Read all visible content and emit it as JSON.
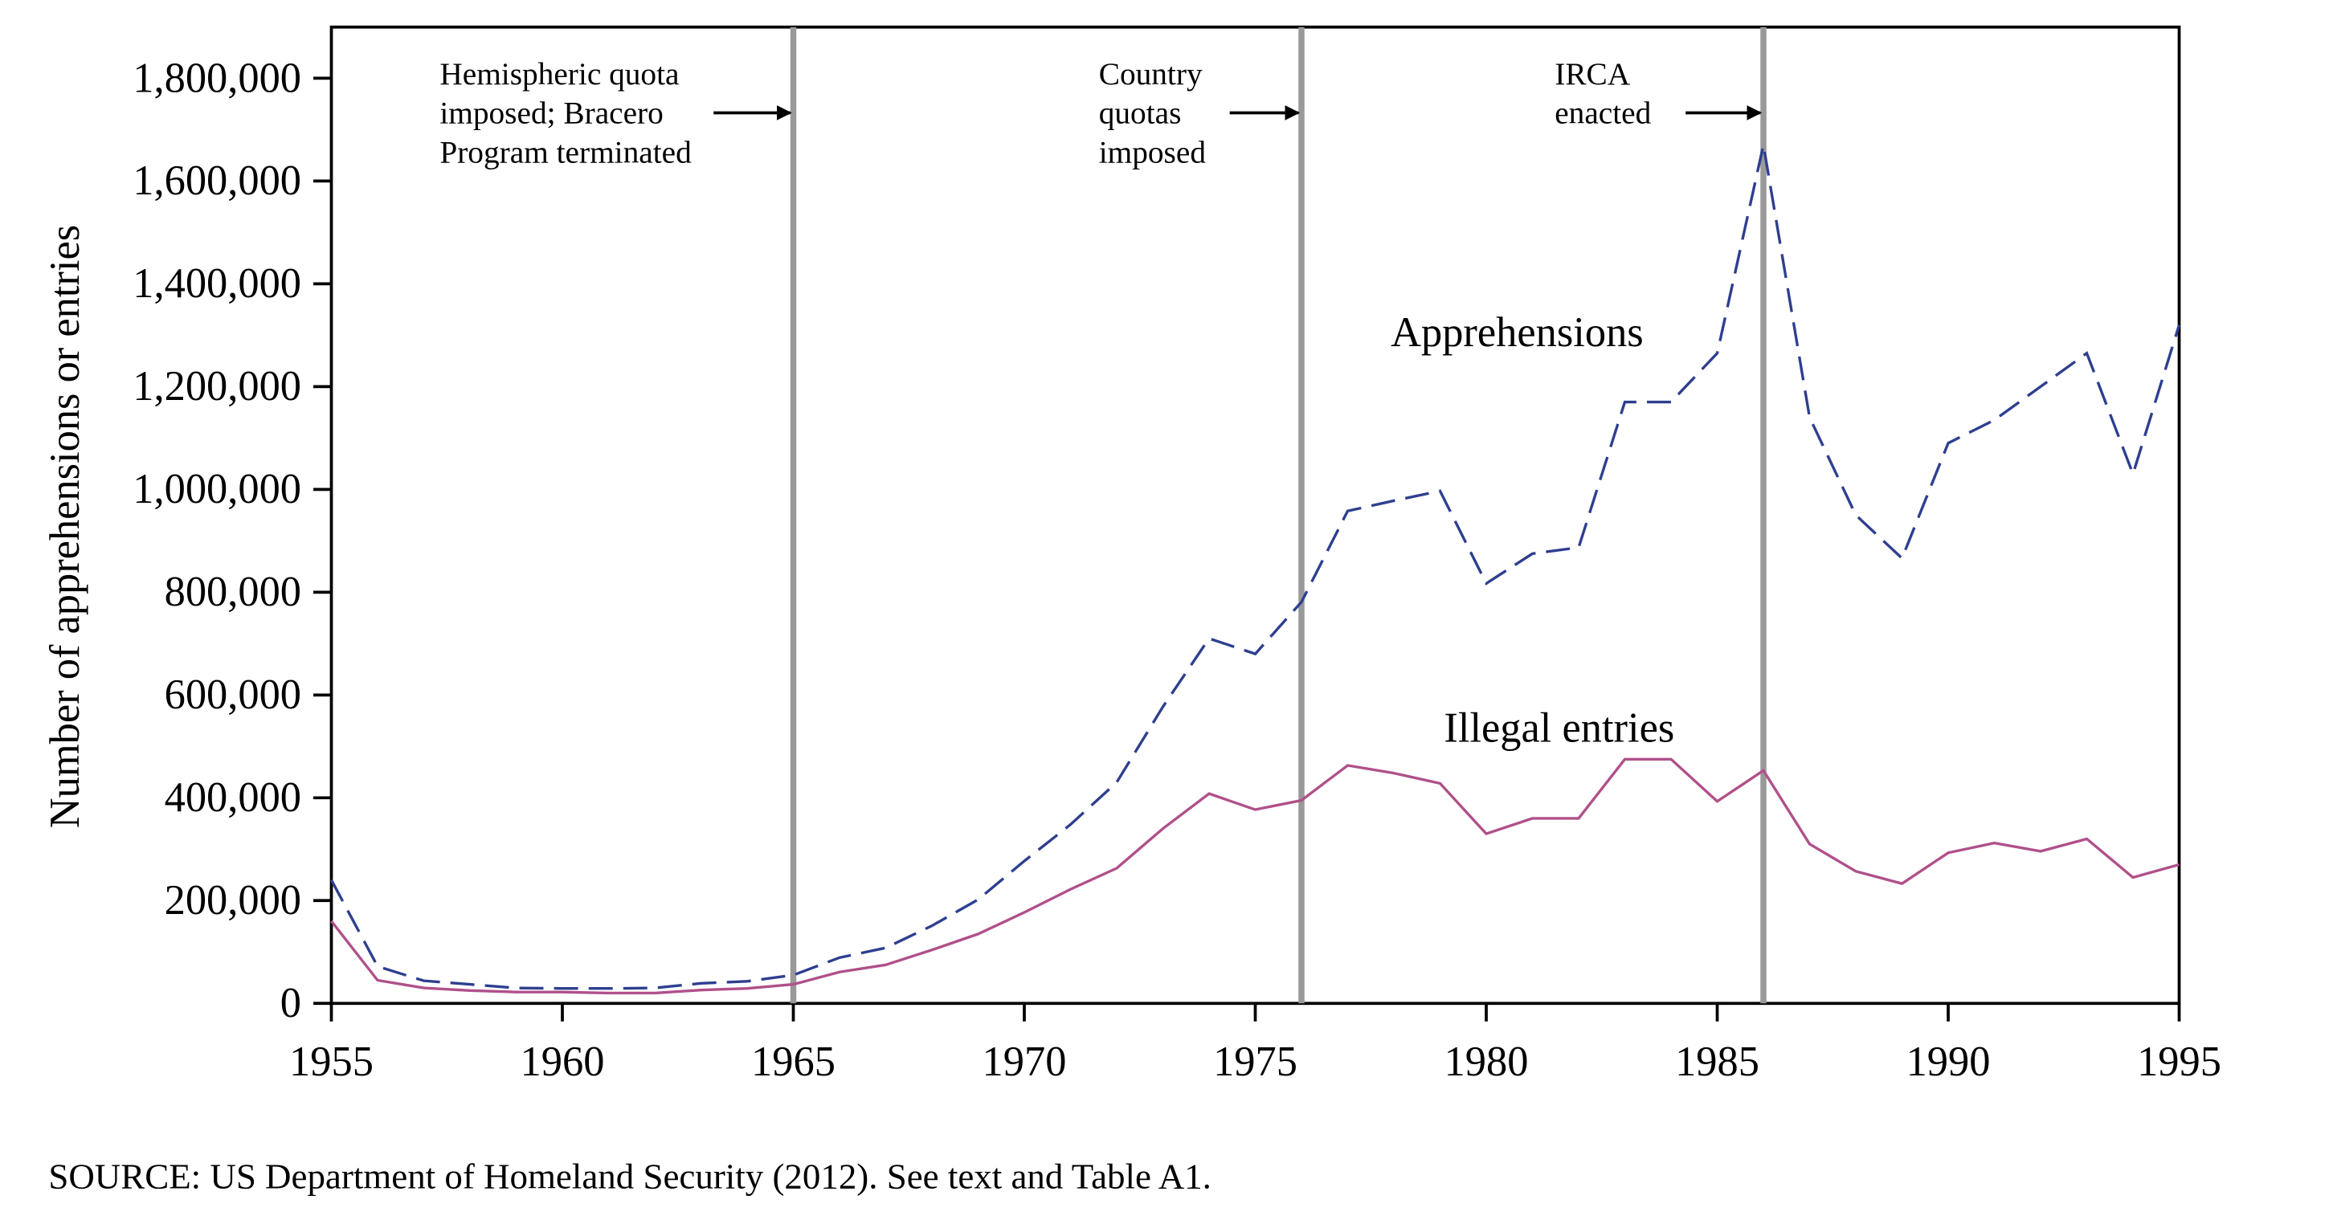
{
  "chart_data": {
    "type": "line",
    "y_label": "Number of apprehensions or entries",
    "source": "SOURCE: US Department of Homeland Security (2012). See text and Table A1.",
    "x": [
      1955,
      1956,
      1957,
      1958,
      1959,
      1960,
      1961,
      1962,
      1963,
      1964,
      1965,
      1966,
      1967,
      1968,
      1969,
      1970,
      1971,
      1972,
      1973,
      1974,
      1975,
      1976,
      1977,
      1978,
      1979,
      1980,
      1981,
      1982,
      1983,
      1984,
      1985,
      1986,
      1987,
      1988,
      1989,
      1990,
      1991,
      1992,
      1993,
      1994,
      1995
    ],
    "series": [
      {
        "name": "Apprehensions",
        "color": "#2e3f8f",
        "style": "dashed",
        "values": [
          240000,
          72000,
          44000,
          37000,
          30000,
          29000,
          29000,
          30000,
          39000,
          43000,
          55000,
          89000,
          108000,
          151000,
          202000,
          277000,
          348000,
          430000,
          577000,
          710000,
          680000,
          781000,
          958000,
          978000,
          997000,
          817000,
          875000,
          887000,
          1170000,
          1170000,
          1265000,
          1670000,
          1140000,
          950000,
          866000,
          1090000,
          1135000,
          1200000,
          1265000,
          1030000,
          1320000
        ]
      },
      {
        "name": "Illegal entries",
        "color": "#b0508a",
        "style": "solid",
        "values": [
          160000,
          45000,
          30000,
          25000,
          22000,
          22000,
          20000,
          20000,
          26000,
          29000,
          37000,
          61000,
          75000,
          104000,
          135000,
          177000,
          222000,
          263000,
          340000,
          408000,
          377000,
          395000,
          463000,
          448000,
          428000,
          330000,
          360000,
          360000,
          475000,
          475000,
          393000,
          453000,
          310000,
          257000,
          233000,
          293000,
          312000,
          296000,
          320000,
          245000,
          270000
        ]
      }
    ],
    "events": [
      {
        "x": 1965,
        "lines": [
          "Hemispheric quota",
          "imposed; Bracero",
          "Program terminated"
        ]
      },
      {
        "x": 1976,
        "lines": [
          "Country",
          "quotas",
          "imposed"
        ]
      },
      {
        "x": 1986,
        "lines": [
          "IRCA",
          "enacted"
        ]
      }
    ],
    "event_color": "#999999",
    "xlim": [
      1955,
      1995
    ],
    "xticks": [
      1955,
      1960,
      1965,
      1970,
      1975,
      1980,
      1985,
      1990,
      1995
    ],
    "ylim": [
      0,
      1800000
    ],
    "yticks": [
      0,
      {
        "value": 200000,
        "label": "200,000"
      },
      {
        "value": 400000,
        "label": "400,000"
      },
      {
        "value": 600000,
        "label": "600,000"
      },
      {
        "value": 800000,
        "label": "800,000"
      },
      {
        "value": 1000000,
        "label": "1,000,000"
      },
      {
        "value": 1200000,
        "label": "1,200,000"
      },
      {
        "value": 1400000,
        "label": "1,400,000"
      },
      {
        "value": 1600000,
        "label": "1,600,000"
      },
      {
        "value": 1800000,
        "label": "1,800,000"
      }
    ]
  }
}
